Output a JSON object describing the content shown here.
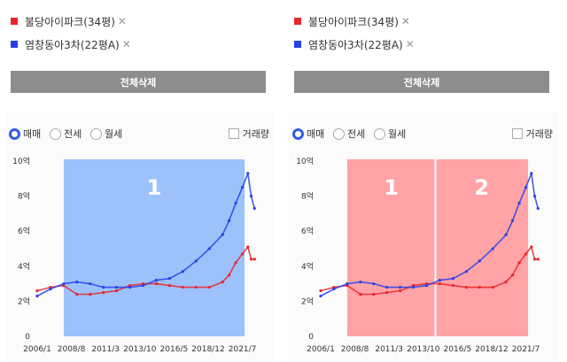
{
  "colors": {
    "red": "#e8252a",
    "blue": "#2840e8",
    "band_blue": "#9dc1fa",
    "band_red": "#ffa3a6",
    "button": "#8d8d8d"
  },
  "compare_items": [
    {
      "label": "불당아이파크(34평)",
      "close": "✕"
    },
    {
      "label": "염창동아3차(22평A)",
      "close": "✕"
    }
  ],
  "delete_all": "전체삭제",
  "options": {
    "sale": "매매",
    "jeonse": "전세",
    "monthly": "월세",
    "volume": "거래량"
  },
  "chart_data": [
    {
      "type": "line",
      "y_ticks": [
        "0",
        "2억",
        "4억",
        "6억",
        "8억",
        "10억"
      ],
      "x_ticks": [
        "2006/1",
        "2008/8",
        "2011/3",
        "2013/10",
        "2016/5",
        "2018/12",
        "2021/7"
      ],
      "ylim": [
        0,
        10
      ],
      "x": [
        "2006/1",
        "2007/1",
        "2008/1",
        "2009/1",
        "2010/1",
        "2011/1",
        "2012/1",
        "2013/1",
        "2014/1",
        "2015/1",
        "2016/1",
        "2017/1",
        "2018/1",
        "2019/1",
        "2020/1",
        "2020/7",
        "2021/1",
        "2021/7",
        "2021/12",
        "2022/3",
        "2022/6"
      ],
      "series": [
        {
          "name": "불당아이파크(34평)",
          "color": "red",
          "values": [
            2.6,
            2.8,
            2.9,
            2.4,
            2.4,
            2.5,
            2.6,
            2.9,
            3.0,
            3.0,
            2.9,
            2.8,
            2.8,
            2.8,
            3.1,
            3.5,
            4.2,
            4.7,
            5.1,
            4.4,
            4.4
          ]
        },
        {
          "name": "염창동아3차(22평A)",
          "color": "blue",
          "values": [
            2.3,
            2.7,
            3.0,
            3.1,
            3.0,
            2.8,
            2.8,
            2.8,
            2.9,
            3.2,
            3.3,
            3.7,
            4.3,
            5.0,
            5.8,
            6.6,
            7.6,
            8.5,
            9.3,
            8.0,
            7.3
          ]
        }
      ],
      "bands": [
        {
          "label": "1",
          "from": "2008/1",
          "to": "2021/9",
          "color": "band_blue"
        }
      ]
    },
    {
      "type": "line",
      "y_ticks": [
        "0",
        "2억",
        "4억",
        "6억",
        "8억",
        "10억"
      ],
      "x_ticks": [
        "2006/1",
        "2008/8",
        "2011/3",
        "2013/10",
        "2016/5",
        "2018/12",
        "2021/7"
      ],
      "ylim": [
        0,
        10
      ],
      "x": [
        "2006/1",
        "2007/1",
        "2008/1",
        "2009/1",
        "2010/1",
        "2011/1",
        "2012/1",
        "2013/1",
        "2014/1",
        "2015/1",
        "2016/1",
        "2017/1",
        "2018/1",
        "2019/1",
        "2020/1",
        "2020/7",
        "2021/1",
        "2021/7",
        "2021/12",
        "2022/3",
        "2022/6"
      ],
      "series": [
        {
          "name": "불당아이파크(34평)",
          "color": "red",
          "values": [
            2.6,
            2.8,
            2.9,
            2.4,
            2.4,
            2.5,
            2.6,
            2.9,
            3.0,
            3.0,
            2.9,
            2.8,
            2.8,
            2.8,
            3.1,
            3.5,
            4.2,
            4.7,
            5.1,
            4.4,
            4.4
          ]
        },
        {
          "name": "염창동아3차(22평A)",
          "color": "blue",
          "values": [
            2.3,
            2.7,
            3.0,
            3.1,
            3.0,
            2.8,
            2.8,
            2.8,
            2.9,
            3.2,
            3.3,
            3.7,
            4.3,
            5.0,
            5.8,
            6.6,
            7.6,
            8.5,
            9.3,
            8.0,
            7.3
          ]
        }
      ],
      "bands": [
        {
          "label": "1",
          "from": "2008/1",
          "to": "2014/9",
          "color": "band_red"
        },
        {
          "label": "2",
          "from": "2014/9",
          "to": "2021/9",
          "color": "band_red"
        }
      ]
    }
  ]
}
